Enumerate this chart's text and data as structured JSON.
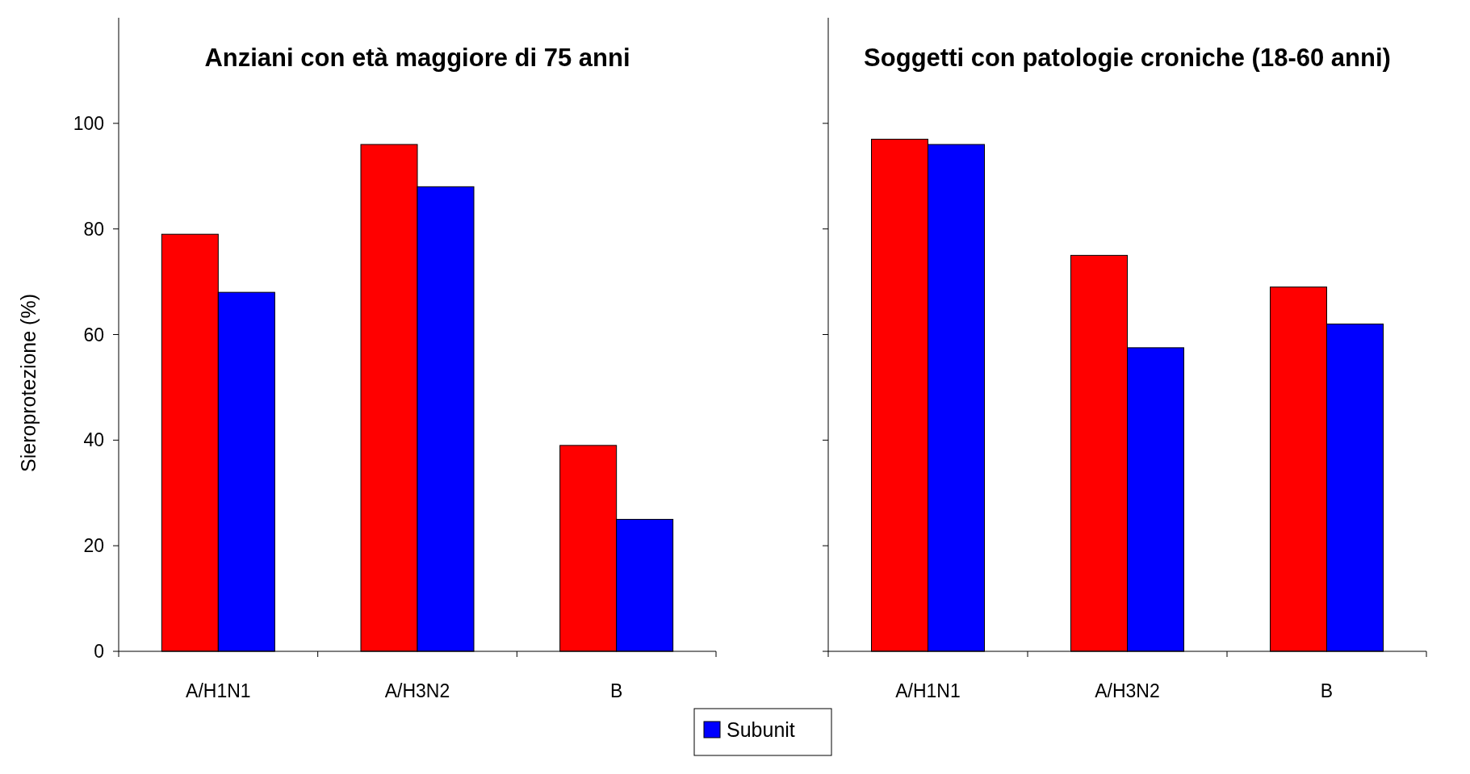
{
  "chart_data": [
    {
      "type": "bar",
      "title": "Anziani con età maggiore di 75 anni",
      "ylabel": "Sieroprotezione (%)",
      "categories": [
        "A/H1N1",
        "A/H3N2",
        "B"
      ],
      "series": [
        {
          "color": "#ff0000",
          "values": [
            79,
            96,
            39
          ]
        },
        {
          "name": "Subunit",
          "color": "#0000ff",
          "values": [
            68,
            88,
            25
          ]
        }
      ],
      "ylim": [
        0,
        120
      ],
      "yticks": [
        0,
        20,
        40,
        60,
        80,
        100
      ],
      "legend": "bottom"
    },
    {
      "type": "bar",
      "title": "Soggetti con patologie croniche (18-60 anni)",
      "categories": [
        "A/H1N1",
        "A/H3N2",
        "B"
      ],
      "series": [
        {
          "color": "#ff0000",
          "values": [
            97,
            75,
            69
          ]
        },
        {
          "name": "Subunit",
          "color": "#0000ff",
          "values": [
            96,
            57.5,
            62
          ]
        }
      ],
      "ylim": [
        0,
        120
      ],
      "yticks": [
        0,
        20,
        40,
        60,
        80,
        100
      ],
      "tick_labels": "x"
    }
  ]
}
